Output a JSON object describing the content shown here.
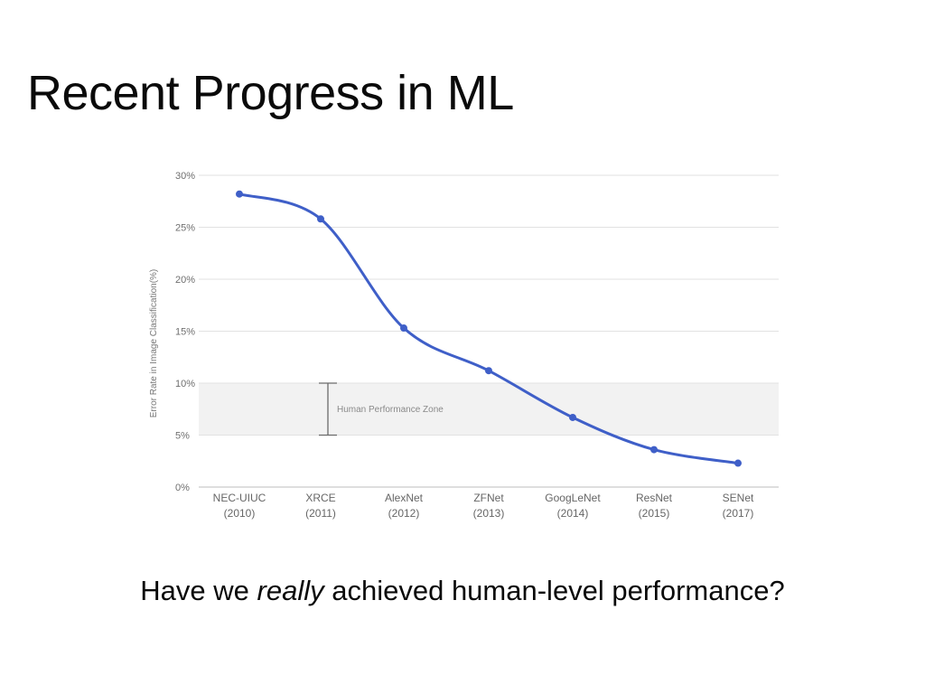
{
  "slide": {
    "title": "Recent Progress in ML",
    "question_before": "Have we ",
    "question_emphasis": "really",
    "question_after": " achieved human-level performance?"
  },
  "chart_data": {
    "type": "line",
    "title": "",
    "xlabel": "",
    "ylabel": "Error Rate in Image Classification(%)",
    "ylim": [
      0,
      30
    ],
    "yticks": [
      0,
      5,
      10,
      15,
      20,
      25,
      30
    ],
    "ytick_labels": [
      "0%",
      "5%",
      "10%",
      "15%",
      "20%",
      "25%",
      "30%"
    ],
    "grid": true,
    "line_color": "#3f5fc8",
    "categories": [
      {
        "name": "NEC-UIUC",
        "year": "(2010)"
      },
      {
        "name": "XRCE",
        "year": "(2011)"
      },
      {
        "name": "AlexNet",
        "year": "(2012)"
      },
      {
        "name": "ZFNet",
        "year": "(2013)"
      },
      {
        "name": "GoogLeNet",
        "year": "(2014)"
      },
      {
        "name": "ResNet",
        "year": "(2015)"
      },
      {
        "name": "SENet",
        "year": "(2017)"
      }
    ],
    "values": [
      28.2,
      25.8,
      15.3,
      11.2,
      6.7,
      3.6,
      2.3
    ],
    "band": {
      "from": 5,
      "to": 10,
      "label": "Human Performance Zone",
      "color": "#f2f2f2"
    }
  }
}
